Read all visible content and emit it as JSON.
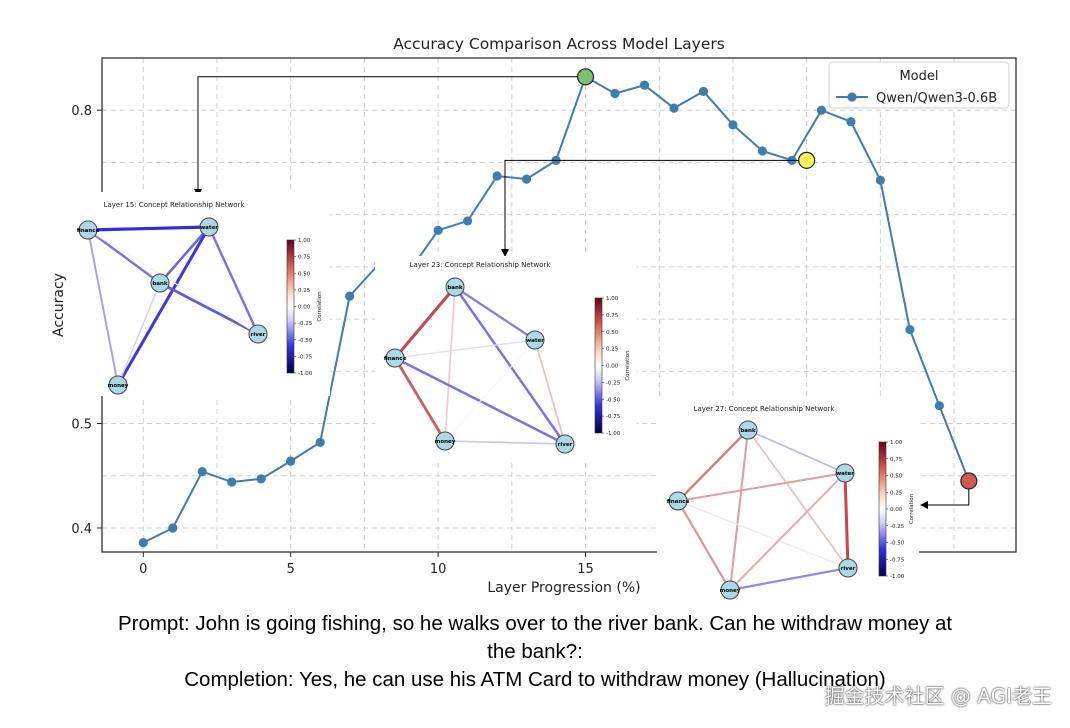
{
  "chart_data": {
    "type": "line",
    "title": "Accuracy Comparison Across Model Layers",
    "xlabel": "Layer Progression (%)",
    "ylabel": "Accuracy",
    "xlim": [
      -1.4,
      29.6
    ],
    "ylim": [
      0.377,
      0.85
    ],
    "grid": true,
    "legend": {
      "title": "Model",
      "placement": "top-right"
    },
    "x_ticks": [
      0,
      5,
      10,
      15
    ],
    "y_ticks": [
      0.4,
      0.5,
      0.8
    ],
    "series": [
      {
        "name": "Qwen/Qwen3-0.6B",
        "color": "#3f7cb0",
        "x": [
          0,
          1,
          2,
          3,
          4,
          5,
          6,
          7,
          8,
          9,
          10,
          11,
          12,
          13,
          14,
          15,
          16,
          17,
          18,
          19,
          20,
          21,
          22,
          23,
          24,
          25,
          26,
          27,
          28
        ],
        "y": [
          0.386,
          0.4,
          0.454,
          0.444,
          0.447,
          0.464,
          0.482,
          0.622,
          0.653,
          0.645,
          0.685,
          0.694,
          0.737,
          0.734,
          0.752,
          0.832,
          0.816,
          0.824,
          0.802,
          0.818,
          0.786,
          0.761,
          0.752,
          0.8,
          0.789,
          0.733,
          0.59,
          0.517,
          0.445
        ]
      }
    ],
    "highlights": [
      {
        "x": 15,
        "y": 0.832,
        "color": "#7dbf6e",
        "target": "Layer 15"
      },
      {
        "x": 22.5,
        "y": 0.752,
        "color": "#f7f35a",
        "target": "Layer 23"
      },
      {
        "x": 28,
        "y": 0.445,
        "color": "#cf5a4c",
        "target": "Layer 27"
      }
    ],
    "insets": [
      {
        "title": "Layer 15: Concept Relationship Network",
        "type": "network",
        "nodes": [
          "finance",
          "water",
          "bank",
          "river",
          "money"
        ],
        "edges": [
          {
            "a": "finance",
            "b": "water",
            "corr": -0.9
          },
          {
            "a": "finance",
            "b": "bank",
            "corr": -0.6
          },
          {
            "a": "finance",
            "b": "money",
            "corr": -0.4
          },
          {
            "a": "water",
            "b": "bank",
            "corr": -0.65
          },
          {
            "a": "water",
            "b": "money",
            "corr": -0.85
          },
          {
            "a": "water",
            "b": "river",
            "corr": -0.6
          },
          {
            "a": "bank",
            "b": "river",
            "corr": -0.7
          },
          {
            "a": "bank",
            "b": "money",
            "corr": -0.2
          },
          {
            "a": "finance",
            "b": "river",
            "corr": -0.05
          }
        ],
        "colorbar_label": "Correlation",
        "colorbar_ticks": [
          "1.00",
          "0.75",
          "0.50",
          "0.25",
          "0.00",
          "-0.25",
          "-0.50",
          "-0.75",
          "-1.00"
        ]
      },
      {
        "title": "Layer 23: Concept Relationship Network",
        "type": "network",
        "nodes": [
          "bank",
          "water",
          "finance",
          "money",
          "river"
        ],
        "edges": [
          {
            "a": "bank",
            "b": "finance",
            "corr": 0.85
          },
          {
            "a": "finance",
            "b": "money",
            "corr": 0.75
          },
          {
            "a": "bank",
            "b": "money",
            "corr": 0.25
          },
          {
            "a": "bank",
            "b": "water",
            "corr": -0.55
          },
          {
            "a": "bank",
            "b": "river",
            "corr": -0.6
          },
          {
            "a": "finance",
            "b": "water",
            "corr": -0.15
          },
          {
            "a": "finance",
            "b": "river",
            "corr": -0.6
          },
          {
            "a": "water",
            "b": "river",
            "corr": 0.3
          },
          {
            "a": "money",
            "b": "water",
            "corr": 0.05
          },
          {
            "a": "money",
            "b": "river",
            "corr": -0.25
          }
        ],
        "colorbar_label": "Correlation",
        "colorbar_ticks": [
          "1.00",
          "0.75",
          "0.50",
          "0.25",
          "0.00",
          "-0.25",
          "-0.50",
          "-0.75",
          "-1.00"
        ]
      },
      {
        "title": "Layer 27: Concept Relationship Network",
        "type": "network",
        "nodes": [
          "bank",
          "water",
          "finance",
          "river",
          "money"
        ],
        "edges": [
          {
            "a": "bank",
            "b": "finance",
            "corr": 0.6
          },
          {
            "a": "bank",
            "b": "money",
            "corr": 0.45
          },
          {
            "a": "bank",
            "b": "river",
            "corr": 0.3
          },
          {
            "a": "bank",
            "b": "water",
            "corr": -0.3
          },
          {
            "a": "finance",
            "b": "water",
            "corr": 0.45
          },
          {
            "a": "finance",
            "b": "money",
            "corr": 0.5
          },
          {
            "a": "finance",
            "b": "river",
            "corr": -0.1
          },
          {
            "a": "water",
            "b": "river",
            "corr": 0.85
          },
          {
            "a": "water",
            "b": "money",
            "corr": 0.4
          },
          {
            "a": "money",
            "b": "river",
            "corr": -0.5
          }
        ],
        "colorbar_label": "Correlation",
        "colorbar_ticks": [
          "1.00",
          "0.75",
          "0.50",
          "0.25",
          "0.00",
          "-0.25",
          "-0.50",
          "-0.75",
          "-1.00"
        ]
      }
    ]
  },
  "caption": {
    "line1": "Prompt: John is going fishing, so he walks over to the river bank. Can he withdraw money at",
    "line2": "the bank?:",
    "line3": "Completion: Yes, he can use his ATM Card to withdraw money (Hallucination)"
  },
  "watermark": "掘金技术社区 @ AGI老王"
}
